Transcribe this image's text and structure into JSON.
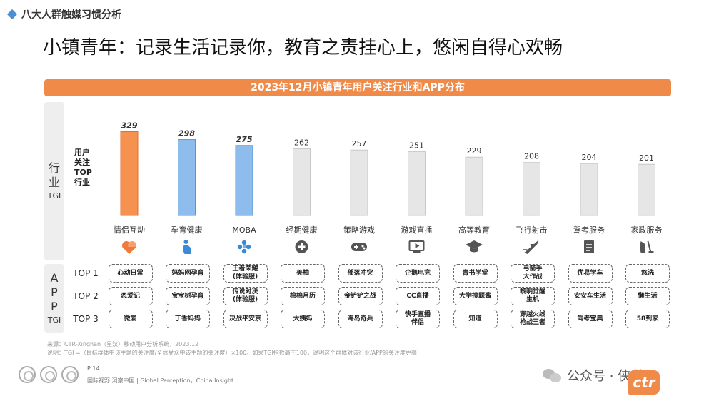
{
  "section_header": "八大人群触媒习惯分析",
  "page_title": "小镇青年：记录生活记录你，教育之责挂心上，悠闲自得心欢畅",
  "industry_label": {
    "big": [
      "行",
      "业"
    ],
    "small": "TGI"
  },
  "app_label": {
    "big": [
      "A",
      "P",
      "P"
    ],
    "small": "TGI"
  },
  "top_labels": [
    "TOP 1",
    "TOP 2",
    "TOP 3"
  ],
  "chart_data": {
    "type": "bar",
    "title": "2023年12月小镇青年用户关注行业和APP分布",
    "ylabel": [
      "用户",
      "关注",
      "TOP",
      "行业"
    ],
    "categories": [
      "情侣互动",
      "孕育健康",
      "MOBA",
      "经期健康",
      "策略游戏",
      "游戏直播",
      "高等教育",
      "飞行射击",
      "驾考服务",
      "家政服务"
    ],
    "values": [
      329,
      298,
      275,
      262,
      257,
      251,
      229,
      208,
      204,
      201
    ],
    "highlight": [
      "orange",
      "blue",
      "blue",
      "gray",
      "gray",
      "gray",
      "gray",
      "gray",
      "gray",
      "gray"
    ],
    "ylim": [
      0,
      350
    ]
  },
  "colors": {
    "orange": "#f5924f",
    "blue": "#8ebcec",
    "gray": "#e6e6e6",
    "orange_border": "#e07030",
    "blue_border": "#5a94d6",
    "gray_border": "#c8c8c8"
  },
  "icons": [
    "hearts-icon",
    "pregnancy-icon",
    "gamepad-cross-icon",
    "health-cross-icon",
    "gamepad-icon",
    "monitor-icon",
    "graduation-cap-icon",
    "jet-icon",
    "document-icon",
    "cleaning-icon"
  ],
  "apps": [
    [
      "心动日常",
      "恋爱记",
      "微爱"
    ],
    [
      "妈妈网孕育",
      "宝宝树孕育",
      "丁香妈妈"
    ],
    [
      "王者荣耀\n(体验服)",
      "传说对决\n(体验服)",
      "决战平安京"
    ],
    [
      "美柚",
      "棉棉月历",
      "大姨妈"
    ],
    [
      "部落冲突",
      "金铲铲之战",
      "海岛奇兵"
    ],
    [
      "企鹅电竞",
      "CC直播",
      "快手直播\n伴侣"
    ],
    [
      "青书学堂",
      "大学搜题酱",
      "知道"
    ],
    [
      "弓箭手\n大作战",
      "黎明觉醒\n生机",
      "穿越火线\n枪战王者"
    ],
    [
      "优易学车",
      "安安车生活",
      "驾考宝典"
    ],
    [
      "悠洗",
      "懒生活",
      "58到家"
    ]
  ],
  "notes": [
    "来源：CTR-Xinghan（星汉）移动用户分析系统，2023.12",
    "说明：TGI =（目标群体中该主题的关注度/全体受众中该主题的关注度）×100。如果TGI指数高于100，说明这个群体对该行业/APP的关注度更高"
  ],
  "footer": {
    "page_number": "P 14",
    "tagline": "国际视野  洞察中国 |  Global Perception，China Insight",
    "wechat_text": "公众号 · 侠说",
    "logo_text": "ctr"
  }
}
